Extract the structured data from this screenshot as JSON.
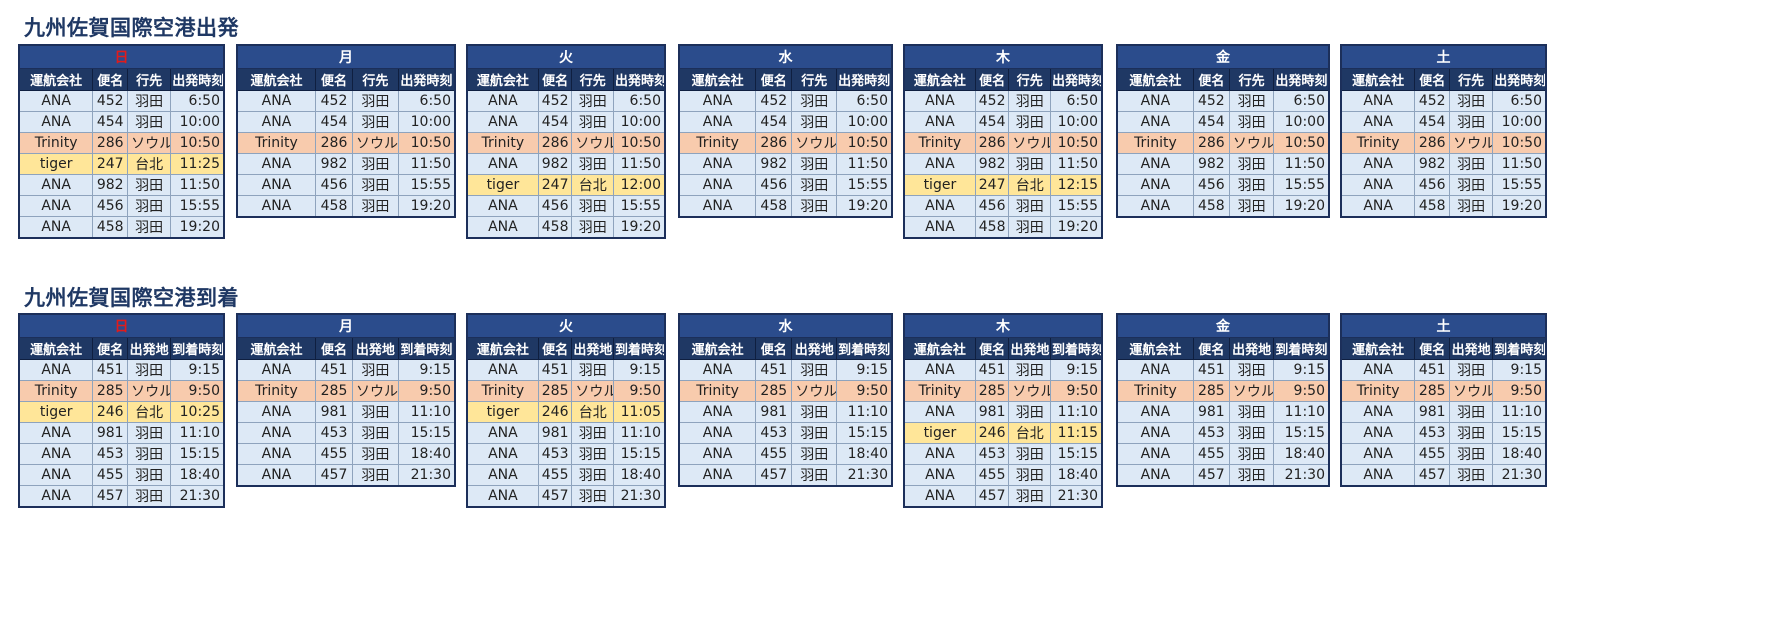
{
  "departures": {
    "title": "九州佐賀国際空港出発",
    "headers": [
      "運航会社",
      "便名",
      "行先",
      "出発時刻"
    ],
    "days": [
      {
        "label": "日",
        "is_sunday": true,
        "rows": [
          {
            "airline": "ANA",
            "flight": "452",
            "place": "羽田",
            "time": "6:50"
          },
          {
            "airline": "ANA",
            "flight": "454",
            "place": "羽田",
            "time": "10:00"
          },
          {
            "airline": "Trinity",
            "flight": "286",
            "place": "ソウル",
            "time": "10:50"
          },
          {
            "airline": "tiger",
            "flight": "247",
            "place": "台北",
            "time": "11:25"
          },
          {
            "airline": "ANA",
            "flight": "982",
            "place": "羽田",
            "time": "11:50"
          },
          {
            "airline": "ANA",
            "flight": "456",
            "place": "羽田",
            "time": "15:55"
          },
          {
            "airline": "ANA",
            "flight": "458",
            "place": "羽田",
            "time": "19:20"
          }
        ]
      },
      {
        "label": "月",
        "is_sunday": false,
        "rows": [
          {
            "airline": "ANA",
            "flight": "452",
            "place": "羽田",
            "time": "6:50"
          },
          {
            "airline": "ANA",
            "flight": "454",
            "place": "羽田",
            "time": "10:00"
          },
          {
            "airline": "Trinity",
            "flight": "286",
            "place": "ソウル",
            "time": "10:50"
          },
          {
            "airline": "ANA",
            "flight": "982",
            "place": "羽田",
            "time": "11:50"
          },
          {
            "airline": "ANA",
            "flight": "456",
            "place": "羽田",
            "time": "15:55"
          },
          {
            "airline": "ANA",
            "flight": "458",
            "place": "羽田",
            "time": "19:20"
          }
        ]
      },
      {
        "label": "火",
        "is_sunday": false,
        "rows": [
          {
            "airline": "ANA",
            "flight": "452",
            "place": "羽田",
            "time": "6:50"
          },
          {
            "airline": "ANA",
            "flight": "454",
            "place": "羽田",
            "time": "10:00"
          },
          {
            "airline": "Trinity",
            "flight": "286",
            "place": "ソウル",
            "time": "10:50"
          },
          {
            "airline": "ANA",
            "flight": "982",
            "place": "羽田",
            "time": "11:50"
          },
          {
            "airline": "tiger",
            "flight": "247",
            "place": "台北",
            "time": "12:00"
          },
          {
            "airline": "ANA",
            "flight": "456",
            "place": "羽田",
            "time": "15:55"
          },
          {
            "airline": "ANA",
            "flight": "458",
            "place": "羽田",
            "time": "19:20"
          }
        ]
      },
      {
        "label": "水",
        "is_sunday": false,
        "rows": [
          {
            "airline": "ANA",
            "flight": "452",
            "place": "羽田",
            "time": "6:50"
          },
          {
            "airline": "ANA",
            "flight": "454",
            "place": "羽田",
            "time": "10:00"
          },
          {
            "airline": "Trinity",
            "flight": "286",
            "place": "ソウル",
            "time": "10:50"
          },
          {
            "airline": "ANA",
            "flight": "982",
            "place": "羽田",
            "time": "11:50"
          },
          {
            "airline": "ANA",
            "flight": "456",
            "place": "羽田",
            "time": "15:55"
          },
          {
            "airline": "ANA",
            "flight": "458",
            "place": "羽田",
            "time": "19:20"
          }
        ]
      },
      {
        "label": "木",
        "is_sunday": false,
        "rows": [
          {
            "airline": "ANA",
            "flight": "452",
            "place": "羽田",
            "time": "6:50"
          },
          {
            "airline": "ANA",
            "flight": "454",
            "place": "羽田",
            "time": "10:00"
          },
          {
            "airline": "Trinity",
            "flight": "286",
            "place": "ソウル",
            "time": "10:50"
          },
          {
            "airline": "ANA",
            "flight": "982",
            "place": "羽田",
            "time": "11:50"
          },
          {
            "airline": "tiger",
            "flight": "247",
            "place": "台北",
            "time": "12:15"
          },
          {
            "airline": "ANA",
            "flight": "456",
            "place": "羽田",
            "time": "15:55"
          },
          {
            "airline": "ANA",
            "flight": "458",
            "place": "羽田",
            "time": "19:20"
          }
        ]
      },
      {
        "label": "金",
        "is_sunday": false,
        "rows": [
          {
            "airline": "ANA",
            "flight": "452",
            "place": "羽田",
            "time": "6:50"
          },
          {
            "airline": "ANA",
            "flight": "454",
            "place": "羽田",
            "time": "10:00"
          },
          {
            "airline": "Trinity",
            "flight": "286",
            "place": "ソウル",
            "time": "10:50"
          },
          {
            "airline": "ANA",
            "flight": "982",
            "place": "羽田",
            "time": "11:50"
          },
          {
            "airline": "ANA",
            "flight": "456",
            "place": "羽田",
            "time": "15:55"
          },
          {
            "airline": "ANA",
            "flight": "458",
            "place": "羽田",
            "time": "19:20"
          }
        ]
      },
      {
        "label": "土",
        "is_sunday": false,
        "rows": [
          {
            "airline": "ANA",
            "flight": "452",
            "place": "羽田",
            "time": "6:50"
          },
          {
            "airline": "ANA",
            "flight": "454",
            "place": "羽田",
            "time": "10:00"
          },
          {
            "airline": "Trinity",
            "flight": "286",
            "place": "ソウル",
            "time": "10:50"
          },
          {
            "airline": "ANA",
            "flight": "982",
            "place": "羽田",
            "time": "11:50"
          },
          {
            "airline": "ANA",
            "flight": "456",
            "place": "羽田",
            "time": "15:55"
          },
          {
            "airline": "ANA",
            "flight": "458",
            "place": "羽田",
            "time": "19:20"
          }
        ]
      }
    ]
  },
  "arrivals": {
    "title": "九州佐賀国際空港到着",
    "headers": [
      "運航会社",
      "便名",
      "出発地",
      "到着時刻"
    ],
    "days": [
      {
        "label": "日",
        "is_sunday": true,
        "rows": [
          {
            "airline": "ANA",
            "flight": "451",
            "place": "羽田",
            "time": "9:15"
          },
          {
            "airline": "Trinity",
            "flight": "285",
            "place": "ソウル",
            "time": "9:50"
          },
          {
            "airline": "tiger",
            "flight": "246",
            "place": "台北",
            "time": "10:25"
          },
          {
            "airline": "ANA",
            "flight": "981",
            "place": "羽田",
            "time": "11:10"
          },
          {
            "airline": "ANA",
            "flight": "453",
            "place": "羽田",
            "time": "15:15"
          },
          {
            "airline": "ANA",
            "flight": "455",
            "place": "羽田",
            "time": "18:40"
          },
          {
            "airline": "ANA",
            "flight": "457",
            "place": "羽田",
            "time": "21:30"
          }
        ]
      },
      {
        "label": "月",
        "is_sunday": false,
        "rows": [
          {
            "airline": "ANA",
            "flight": "451",
            "place": "羽田",
            "time": "9:15"
          },
          {
            "airline": "Trinity",
            "flight": "285",
            "place": "ソウル",
            "time": "9:50"
          },
          {
            "airline": "ANA",
            "flight": "981",
            "place": "羽田",
            "time": "11:10"
          },
          {
            "airline": "ANA",
            "flight": "453",
            "place": "羽田",
            "time": "15:15"
          },
          {
            "airline": "ANA",
            "flight": "455",
            "place": "羽田",
            "time": "18:40"
          },
          {
            "airline": "ANA",
            "flight": "457",
            "place": "羽田",
            "time": "21:30"
          }
        ]
      },
      {
        "label": "火",
        "is_sunday": false,
        "rows": [
          {
            "airline": "ANA",
            "flight": "451",
            "place": "羽田",
            "time": "9:15"
          },
          {
            "airline": "Trinity",
            "flight": "285",
            "place": "ソウル",
            "time": "9:50"
          },
          {
            "airline": "tiger",
            "flight": "246",
            "place": "台北",
            "time": "11:05"
          },
          {
            "airline": "ANA",
            "flight": "981",
            "place": "羽田",
            "time": "11:10"
          },
          {
            "airline": "ANA",
            "flight": "453",
            "place": "羽田",
            "time": "15:15"
          },
          {
            "airline": "ANA",
            "flight": "455",
            "place": "羽田",
            "time": "18:40"
          },
          {
            "airline": "ANA",
            "flight": "457",
            "place": "羽田",
            "time": "21:30"
          }
        ]
      },
      {
        "label": "水",
        "is_sunday": false,
        "rows": [
          {
            "airline": "ANA",
            "flight": "451",
            "place": "羽田",
            "time": "9:15"
          },
          {
            "airline": "Trinity",
            "flight": "285",
            "place": "ソウル",
            "time": "9:50"
          },
          {
            "airline": "ANA",
            "flight": "981",
            "place": "羽田",
            "time": "11:10"
          },
          {
            "airline": "ANA",
            "flight": "453",
            "place": "羽田",
            "time": "15:15"
          },
          {
            "airline": "ANA",
            "flight": "455",
            "place": "羽田",
            "time": "18:40"
          },
          {
            "airline": "ANA",
            "flight": "457",
            "place": "羽田",
            "time": "21:30"
          }
        ]
      },
      {
        "label": "木",
        "is_sunday": false,
        "rows": [
          {
            "airline": "ANA",
            "flight": "451",
            "place": "羽田",
            "time": "9:15"
          },
          {
            "airline": "Trinity",
            "flight": "285",
            "place": "ソウル",
            "time": "9:50"
          },
          {
            "airline": "ANA",
            "flight": "981",
            "place": "羽田",
            "time": "11:10"
          },
          {
            "airline": "tiger",
            "flight": "246",
            "place": "台北",
            "time": "11:15"
          },
          {
            "airline": "ANA",
            "flight": "453",
            "place": "羽田",
            "time": "15:15"
          },
          {
            "airline": "ANA",
            "flight": "455",
            "place": "羽田",
            "time": "18:40"
          },
          {
            "airline": "ANA",
            "flight": "457",
            "place": "羽田",
            "time": "21:30"
          }
        ]
      },
      {
        "label": "金",
        "is_sunday": false,
        "rows": [
          {
            "airline": "ANA",
            "flight": "451",
            "place": "羽田",
            "time": "9:15"
          },
          {
            "airline": "Trinity",
            "flight": "285",
            "place": "ソウル",
            "time": "9:50"
          },
          {
            "airline": "ANA",
            "flight": "981",
            "place": "羽田",
            "time": "11:10"
          },
          {
            "airline": "ANA",
            "flight": "453",
            "place": "羽田",
            "time": "15:15"
          },
          {
            "airline": "ANA",
            "flight": "455",
            "place": "羽田",
            "time": "18:40"
          },
          {
            "airline": "ANA",
            "flight": "457",
            "place": "羽田",
            "time": "21:30"
          }
        ]
      },
      {
        "label": "土",
        "is_sunday": false,
        "rows": [
          {
            "airline": "ANA",
            "flight": "451",
            "place": "羽田",
            "time": "9:15"
          },
          {
            "airline": "Trinity",
            "flight": "285",
            "place": "ソウル",
            "time": "9:50"
          },
          {
            "airline": "ANA",
            "flight": "981",
            "place": "羽田",
            "time": "11:10"
          },
          {
            "airline": "ANA",
            "flight": "453",
            "place": "羽田",
            "time": "15:15"
          },
          {
            "airline": "ANA",
            "flight": "455",
            "place": "羽田",
            "time": "18:40"
          },
          {
            "airline": "ANA",
            "flight": "457",
            "place": "羽田",
            "time": "21:30"
          }
        ]
      }
    ]
  },
  "colors": {
    "header_dark": "#1f3864",
    "day_header": "#2b4c8c",
    "sunday_text": "#e11b1b",
    "row_default": "#dde9f6",
    "row_trinity": "#f8cbad",
    "row_tiger": "#ffe699"
  }
}
